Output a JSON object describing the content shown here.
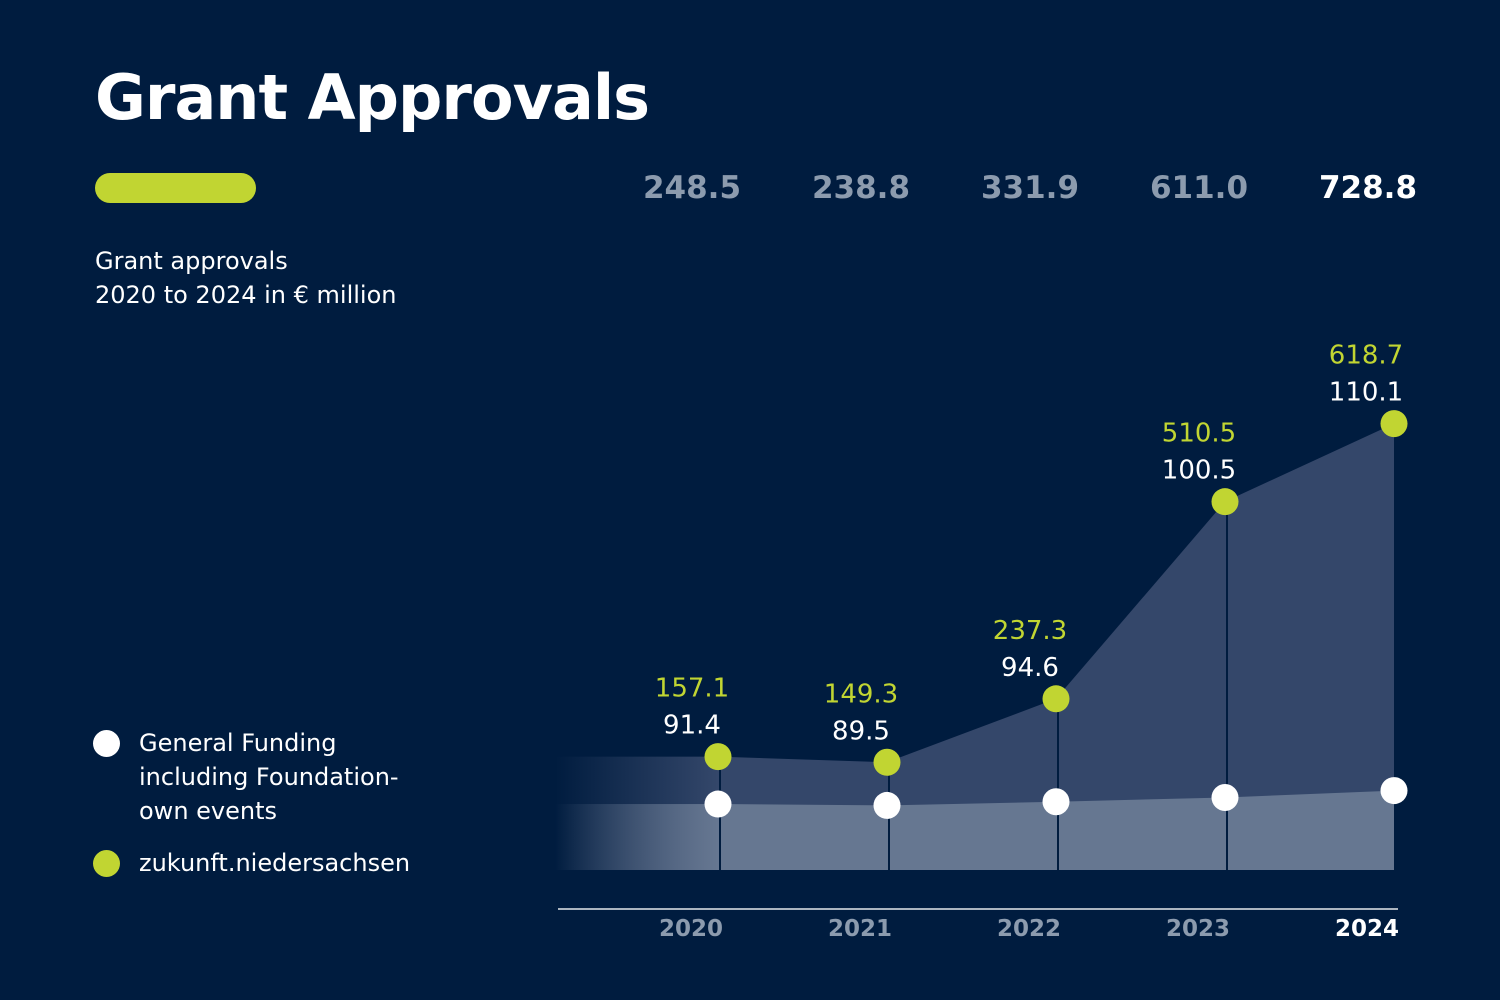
{
  "title": "Grant Approvals",
  "subtitle": {
    "line1": "Grant approvals",
    "line2": "2020 to 2024 in € million"
  },
  "colors": {
    "background": "#001c3f",
    "accent": "#c1d532",
    "total_muted": "#8c9bae",
    "total_highlight": "#ffffff",
    "area_upper": "#34476a",
    "area_lower": "#667791",
    "dot_general": "#ffffff",
    "dot_zukunft": "#c1d532",
    "year_muted": "#8c9bae",
    "year_highlight": "#ffffff"
  },
  "legend": [
    {
      "label": "General Funding\nincluding Foundation-\nown events",
      "color": "#ffffff",
      "icon": "white-circle-icon"
    },
    {
      "label": "zukunft.niedersachsen",
      "color": "#c1d532",
      "icon": "green-circle-icon"
    }
  ],
  "chart_data": {
    "type": "area",
    "title": "Grant Approvals",
    "subtitle": "Grant approvals 2020 to 2024 in € million",
    "x": [
      "2020",
      "2021",
      "2022",
      "2023",
      "2024"
    ],
    "highlight_index": 4,
    "totals": [
      "248.5",
      "238.8",
      "331.9",
      "611.0",
      "728.8"
    ],
    "stacked": true,
    "series": [
      {
        "name": "General Funding including Foundation-own events",
        "values": [
          91.4,
          89.5,
          94.6,
          100.5,
          110.1
        ],
        "labels": [
          "91.4",
          "89.5",
          "94.6",
          "100.5",
          "110.1"
        ],
        "color": "#ffffff"
      },
      {
        "name": "zukunft.niedersachsen",
        "values": [
          157.1,
          149.3,
          237.3,
          510.5,
          618.7
        ],
        "labels": [
          "157.1",
          "149.3",
          "237.3",
          "510.5",
          "618.7"
        ],
        "color": "#c1d532"
      }
    ],
    "grid": false,
    "legend_position": "left"
  }
}
